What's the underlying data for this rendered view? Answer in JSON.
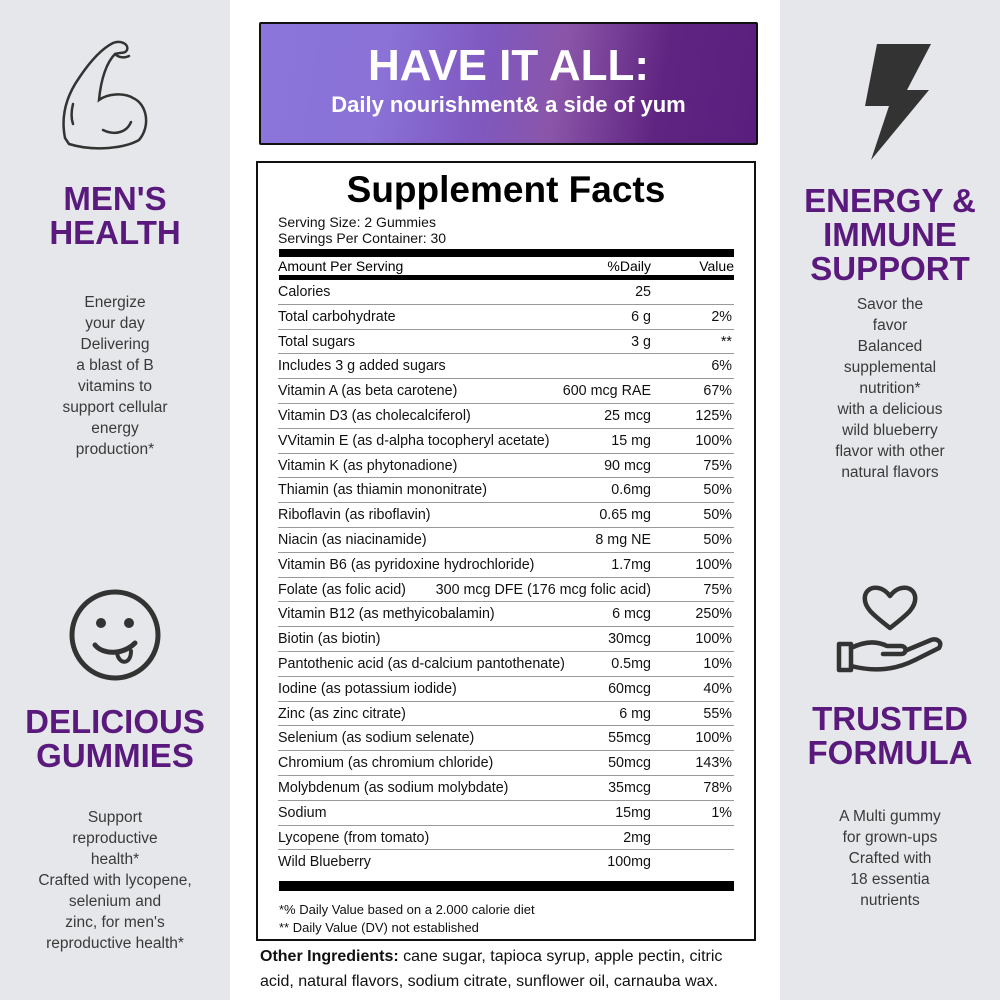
{
  "banner": {
    "title": "HAVE IT ALL:",
    "subtitle": "Daily nourishment& a side of yum",
    "gradient": [
      "#8b74db",
      "#5a1e7e"
    ]
  },
  "features": [
    {
      "icon": "flexed-arm-icon",
      "title": "MEN'S\nHEALTH",
      "text": "Energize\nyour day\nDelivering\na blast of B\nvitamins to\nsupport cellular\nenergy\nproduction*"
    },
    {
      "icon": "tongue-smiley-icon",
      "title": "DELICIOUS\nGUMMIES",
      "text": "Support\nreproductive\nhealth*\nCrafted with lycopene,\nselenium and\nzinc, for men's\nreproductive health*"
    },
    {
      "icon": "lightning-bolt-icon",
      "title": "ENERGY &\nIMMUNE\nSUPPORT",
      "text": "Savor the\nfavor\nBalanced\nsupplemental\nnutrition*\nwith a delicious\nwild blueberry\nflavor with other\nnatural flavors"
    },
    {
      "icon": "hand-heart-icon",
      "title": "TRUSTED\nFORMULA",
      "text": "A Multi gummy\nfor grown-ups\nCrafted with\n18 essentia\nnutrients"
    }
  ],
  "facts": {
    "title": "Supplement Facts",
    "serving_size": "Serving Size: 2 Gummies",
    "servings": "Servings Per Container: 30",
    "header": {
      "amount": "Amount Per Serving",
      "daily": "%Daily",
      "value": "Value"
    },
    "rows": [
      [
        "Calories",
        "25",
        ""
      ],
      [
        "Total carbohydrate",
        "6 g",
        "2%"
      ],
      [
        "Total sugars",
        "3 g",
        "**"
      ],
      [
        "Includes 3 g added sugars",
        "",
        "6%"
      ],
      [
        "Vitamin A (as beta carotene)",
        "600 mcg RAE",
        "67%"
      ],
      [
        "Vitamin D3 (as cholecalciferol)",
        "25 mcg",
        "125%"
      ],
      [
        "VVitamin E (as d-alpha tocopheryl acetate)",
        "15 mg",
        "100%"
      ],
      [
        "Vitamin K (as phytonadione)",
        "90 mcg",
        "75%"
      ],
      [
        "Thiamin (as thiamin mononitrate)",
        "0.6mg",
        "50%"
      ],
      [
        "Riboflavin (as riboflavin)",
        "0.65 mg",
        "50%"
      ],
      [
        "Niacin (as niacinamide)",
        "8 mg NE",
        "50%"
      ],
      [
        "Vitamin B6 (as pyridoxine hydrochloride)",
        "1.7mg",
        "100%"
      ],
      [
        "Folate (as folic acid)",
        "300 mcg DFE (176 mcg folic acid)",
        "75%"
      ],
      [
        "Vitamin B12 (as methyicobalamin)",
        "6 mcg",
        "250%"
      ],
      [
        "Biotin (as biotin)",
        "30mcg",
        "100%"
      ],
      [
        "Pantothenic acid (as d-calcium pantothenate)",
        "0.5mg",
        "10%"
      ],
      [
        "Iodine (as potassium iodide)",
        "60mcg",
        "40%"
      ],
      [
        "Zinc (as zinc citrate)",
        "6 mg",
        "55%"
      ],
      [
        "Selenium (as sodium selenate)",
        "55mcg",
        "100%"
      ],
      [
        "Chromium (as chromium chloride)",
        "50mcg",
        "143%"
      ],
      [
        "Molybdenum (as sodium molybdate)",
        "35mcg",
        "78%"
      ],
      [
        "Sodium",
        "15mg",
        "1%"
      ],
      [
        "Lycopene (from tomato)",
        "2mg",
        ""
      ],
      [
        "Wild Blueberry",
        "100mg",
        ""
      ]
    ],
    "footnote1": "*% Daily Value based on a 2.000 calorie diet",
    "footnote2": "** Daily Value (DV) not established"
  },
  "other": {
    "label": "Other Ingredients:",
    "text": " cane sugar, tapioca syrup, apple pectin, citric acid, natural flavors, sodium citrate, sunflower oil, carnauba wax."
  },
  "colors": {
    "accent": "#5a1a7d",
    "panel": "#e6e7ea"
  }
}
